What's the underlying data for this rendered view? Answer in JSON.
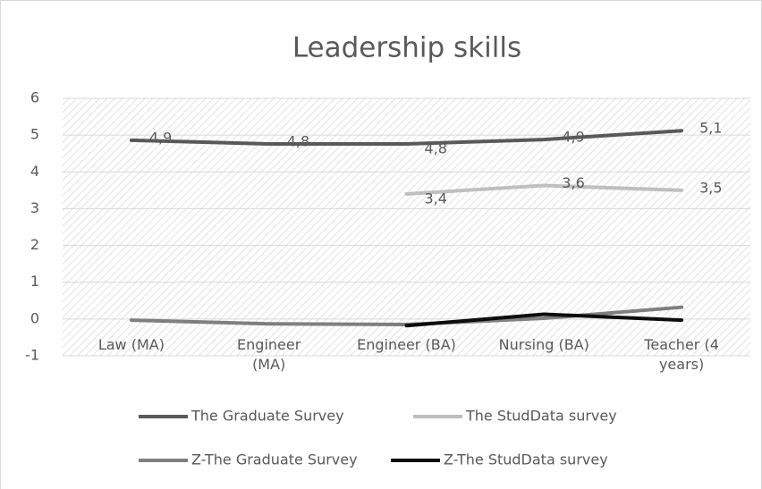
{
  "chart_data": {
    "type": "line",
    "title": "Leadership skills",
    "categories": [
      "Law (MA)",
      "Engineer (MA)",
      "Engineer (BA)",
      "Nursing (BA)",
      "Teacher (4 years)"
    ],
    "series": [
      {
        "name": "The Graduate Survey",
        "color": "#595959",
        "values": [
          4.86,
          4.76,
          4.76,
          4.88,
          5.12
        ],
        "value_labels": [
          "4,9",
          "4,8",
          "4,8",
          "4,9",
          "5,1"
        ]
      },
      {
        "name": "The StudData survey",
        "color": "#bfbfbf",
        "values": [
          null,
          null,
          3.4,
          3.63,
          3.5
        ],
        "value_labels": [
          null,
          null,
          "3,4",
          "3,6",
          "3,5"
        ]
      },
      {
        "name": "Z-The Graduate Survey",
        "color": "#7f7f7f",
        "values": [
          -0.03,
          -0.13,
          -0.15,
          0.02,
          0.32
        ]
      },
      {
        "name": "Z-The StudData survey",
        "color": "#0d0d0d",
        "values": [
          null,
          null,
          -0.18,
          0.13,
          -0.03
        ]
      }
    ],
    "ylim": [
      -1,
      6
    ],
    "yticks": [
      -1,
      0,
      1,
      2,
      3,
      4,
      5,
      6
    ],
    "grid": true,
    "legend": "bottom"
  }
}
